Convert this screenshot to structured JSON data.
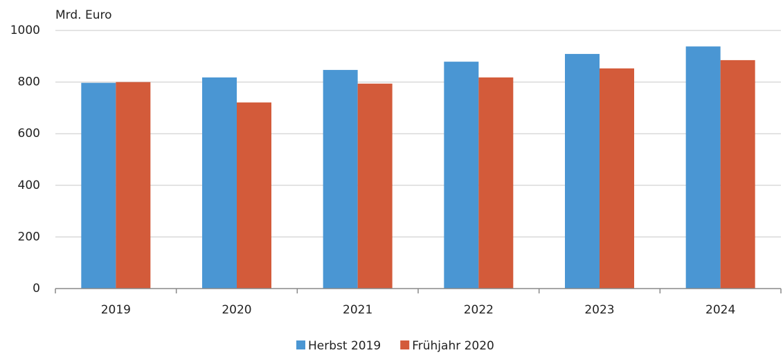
{
  "chart_data": {
    "type": "bar",
    "title": "Mrd. Euro",
    "categories": [
      "2019",
      "2020",
      "2021",
      "2022",
      "2023",
      "2024"
    ],
    "series": [
      {
        "name": "Herbst 2019",
        "color": "#4a96d3",
        "values": [
          797,
          818,
          847,
          879,
          909,
          938
        ]
      },
      {
        "name": "Frühjahr 2020",
        "color": "#d35b3a",
        "values": [
          800,
          721,
          794,
          818,
          853,
          885
        ]
      }
    ],
    "ylim": [
      0,
      1000
    ],
    "yticks": [
      0,
      200,
      400,
      600,
      800,
      1000
    ],
    "grid": true
  }
}
